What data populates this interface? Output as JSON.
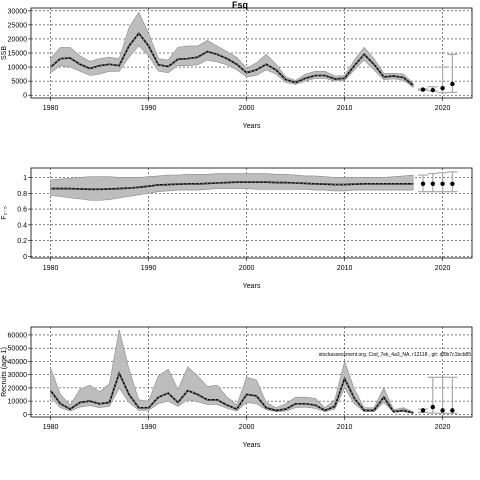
{
  "figure_title": "Fsq",
  "chart_data": [
    {
      "type": "line",
      "title": "Fsq",
      "xlabel": "Years",
      "ylabel": "SSB",
      "xlim": [
        1978,
        2023
      ],
      "ylim": [
        -1000,
        31000
      ],
      "xticks": [
        1980,
        1990,
        2000,
        2010,
        2020
      ],
      "yticks": [
        0,
        5000,
        10000,
        15000,
        20000,
        25000,
        30000
      ],
      "grid": true,
      "x": [
        1980,
        1981,
        1982,
        1983,
        1984,
        1985,
        1986,
        1987,
        1988,
        1989,
        1990,
        1991,
        1992,
        1993,
        1994,
        1995,
        1996,
        1997,
        1998,
        1999,
        2000,
        2001,
        2002,
        2003,
        2004,
        2005,
        2006,
        2007,
        2008,
        2009,
        2010,
        2011,
        2012,
        2013,
        2014,
        2015,
        2016,
        2017
      ],
      "median": [
        10000,
        13000,
        13200,
        11000,
        9500,
        10500,
        11000,
        10500,
        17500,
        22000,
        17500,
        10800,
        10200,
        12800,
        13000,
        13500,
        15500,
        14500,
        13000,
        11000,
        8000,
        9000,
        11000,
        9000,
        5500,
        4500,
        6000,
        7000,
        7000,
        5800,
        6000,
        10500,
        14500,
        11000,
        6500,
        6800,
        6300,
        3500
      ],
      "lower": [
        8000,
        10500,
        10000,
        8500,
        7000,
        7500,
        8500,
        8500,
        13500,
        17500,
        14000,
        8500,
        8000,
        10500,
        10500,
        10800,
        12500,
        11800,
        10800,
        9000,
        6500,
        7000,
        9000,
        7500,
        4500,
        3800,
        5000,
        6000,
        6000,
        5000,
        5200,
        9000,
        12500,
        9000,
        5500,
        5800,
        5300,
        2800
      ],
      "upper": [
        13000,
        17000,
        17000,
        14000,
        12000,
        13000,
        13500,
        13000,
        24000,
        29500,
        22000,
        13000,
        12500,
        17000,
        17500,
        17500,
        19500,
        17500,
        15500,
        13500,
        9500,
        11500,
        14500,
        11000,
        6500,
        5200,
        7500,
        8500,
        8500,
        6800,
        7000,
        12500,
        17000,
        13000,
        7800,
        7800,
        7500,
        4200
      ],
      "projection": {
        "x": [
          2018,
          2019,
          2020,
          2021
        ],
        "values": [
          2000,
          1800,
          2500,
          4000
        ],
        "upper": [
          2200,
          3000,
          10000,
          14500
        ],
        "lower": [
          1800,
          1500,
          900,
          1000
        ]
      }
    },
    {
      "type": "line",
      "xlabel": "Years",
      "ylabel": "F₂₋₅",
      "xlim": [
        1978,
        2023
      ],
      "ylim": [
        -0.02,
        1.12
      ],
      "xticks": [
        1980,
        1990,
        2000,
        2010,
        2020
      ],
      "yticks": [
        0.0,
        0.2,
        0.4,
        0.6,
        0.8,
        1.0
      ],
      "grid": true,
      "x": [
        1980,
        1981,
        1982,
        1983,
        1984,
        1985,
        1986,
        1987,
        1988,
        1989,
        1990,
        1991,
        1992,
        1993,
        1994,
        1995,
        1996,
        1997,
        1998,
        1999,
        2000,
        2001,
        2002,
        2003,
        2004,
        2005,
        2006,
        2007,
        2008,
        2009,
        2010,
        2011,
        2012,
        2013,
        2014,
        2015,
        2016,
        2017
      ],
      "median": [
        0.86,
        0.86,
        0.86,
        0.855,
        0.85,
        0.85,
        0.855,
        0.86,
        0.865,
        0.875,
        0.89,
        0.905,
        0.91,
        0.915,
        0.92,
        0.92,
        0.925,
        0.93,
        0.935,
        0.94,
        0.94,
        0.94,
        0.94,
        0.935,
        0.935,
        0.93,
        0.925,
        0.92,
        0.915,
        0.91,
        0.91,
        0.915,
        0.92,
        0.92,
        0.92,
        0.92,
        0.92,
        0.92
      ],
      "lower": [
        0.77,
        0.76,
        0.74,
        0.73,
        0.71,
        0.71,
        0.72,
        0.74,
        0.76,
        0.78,
        0.8,
        0.82,
        0.83,
        0.84,
        0.84,
        0.84,
        0.85,
        0.86,
        0.86,
        0.86,
        0.86,
        0.85,
        0.85,
        0.85,
        0.85,
        0.85,
        0.85,
        0.84,
        0.84,
        0.83,
        0.83,
        0.84,
        0.84,
        0.84,
        0.84,
        0.84,
        0.84,
        0.84
      ],
      "upper": [
        0.97,
        0.98,
        0.99,
        1.0,
        1.01,
        1.01,
        1.01,
        1.0,
        1.0,
        1.0,
        1.01,
        1.02,
        1.03,
        1.03,
        1.04,
        1.04,
        1.04,
        1.05,
        1.05,
        1.05,
        1.05,
        1.05,
        1.05,
        1.04,
        1.04,
        1.03,
        1.02,
        1.02,
        1.01,
        1.0,
        1.0,
        1.0,
        1.0,
        1.0,
        1.0,
        1.01,
        1.02,
        1.03
      ],
      "projection": {
        "x": [
          2018,
          2019,
          2020,
          2021
        ],
        "values": [
          0.92,
          0.92,
          0.92,
          0.92
        ],
        "upper": [
          1.03,
          1.05,
          1.06,
          1.07
        ],
        "lower": [
          0.82,
          0.82,
          0.82,
          0.82
        ]
      }
    },
    {
      "type": "line",
      "xlabel": "Years",
      "ylabel": "Recruits (age 1)",
      "xlim": [
        1978,
        2023
      ],
      "ylim": [
        -2000,
        66000
      ],
      "xticks": [
        1980,
        1990,
        2000,
        2010,
        2020
      ],
      "yticks": [
        0,
        10000,
        20000,
        30000,
        40000,
        50000,
        60000
      ],
      "grid": true,
      "annotation": "stockassessment.org, Cod_7ek_4a3_NA, r12118 , git: df0b7c1bcb85",
      "x": [
        1980,
        1981,
        1982,
        1983,
        1984,
        1985,
        1986,
        1987,
        1988,
        1989,
        1990,
        1991,
        1992,
        1993,
        1994,
        1995,
        1996,
        1997,
        1998,
        1999,
        2000,
        2001,
        2002,
        2003,
        2004,
        2005,
        2006,
        2007,
        2008,
        2009,
        2010,
        2011,
        2012,
        2013,
        2014,
        2015,
        2016,
        2017
      ],
      "median": [
        18000,
        8000,
        4000,
        9000,
        10000,
        8000,
        9000,
        31000,
        15000,
        5000,
        5000,
        13000,
        16000,
        9000,
        18000,
        15000,
        11000,
        11000,
        7000,
        4000,
        15000,
        14000,
        5000,
        3000,
        4000,
        8000,
        8000,
        7000,
        3000,
        6000,
        27000,
        12000,
        3000,
        3000,
        13000,
        2000,
        3000,
        1000
      ],
      "lower": [
        13000,
        5000,
        2500,
        5500,
        6500,
        5000,
        6000,
        20000,
        9000,
        3000,
        3000,
        8000,
        10000,
        6000,
        11000,
        9500,
        7500,
        7500,
        4500,
        2500,
        9000,
        8000,
        3500,
        2000,
        2500,
        5000,
        5500,
        4500,
        2000,
        4000,
        20000,
        8000,
        2000,
        2000,
        9000,
        1500,
        2000,
        700
      ],
      "upper": [
        35000,
        15000,
        7000,
        19000,
        22000,
        17000,
        23000,
        64000,
        34000,
        11000,
        10000,
        29000,
        34000,
        19000,
        36000,
        29000,
        21000,
        22000,
        13000,
        7000,
        28000,
        26000,
        9000,
        5000,
        8000,
        13000,
        13000,
        12000,
        5000,
        11000,
        40000,
        19000,
        5000,
        5000,
        20000,
        3500,
        5000,
        2000
      ],
      "projection": {
        "x": [
          2018,
          2019,
          2020,
          2021
        ],
        "values": [
          3000,
          5500,
          3000,
          3000
        ],
        "upper": [
          4000,
          28000,
          28000,
          28000
        ],
        "lower": [
          1500,
          1000,
          800,
          800
        ]
      }
    }
  ]
}
